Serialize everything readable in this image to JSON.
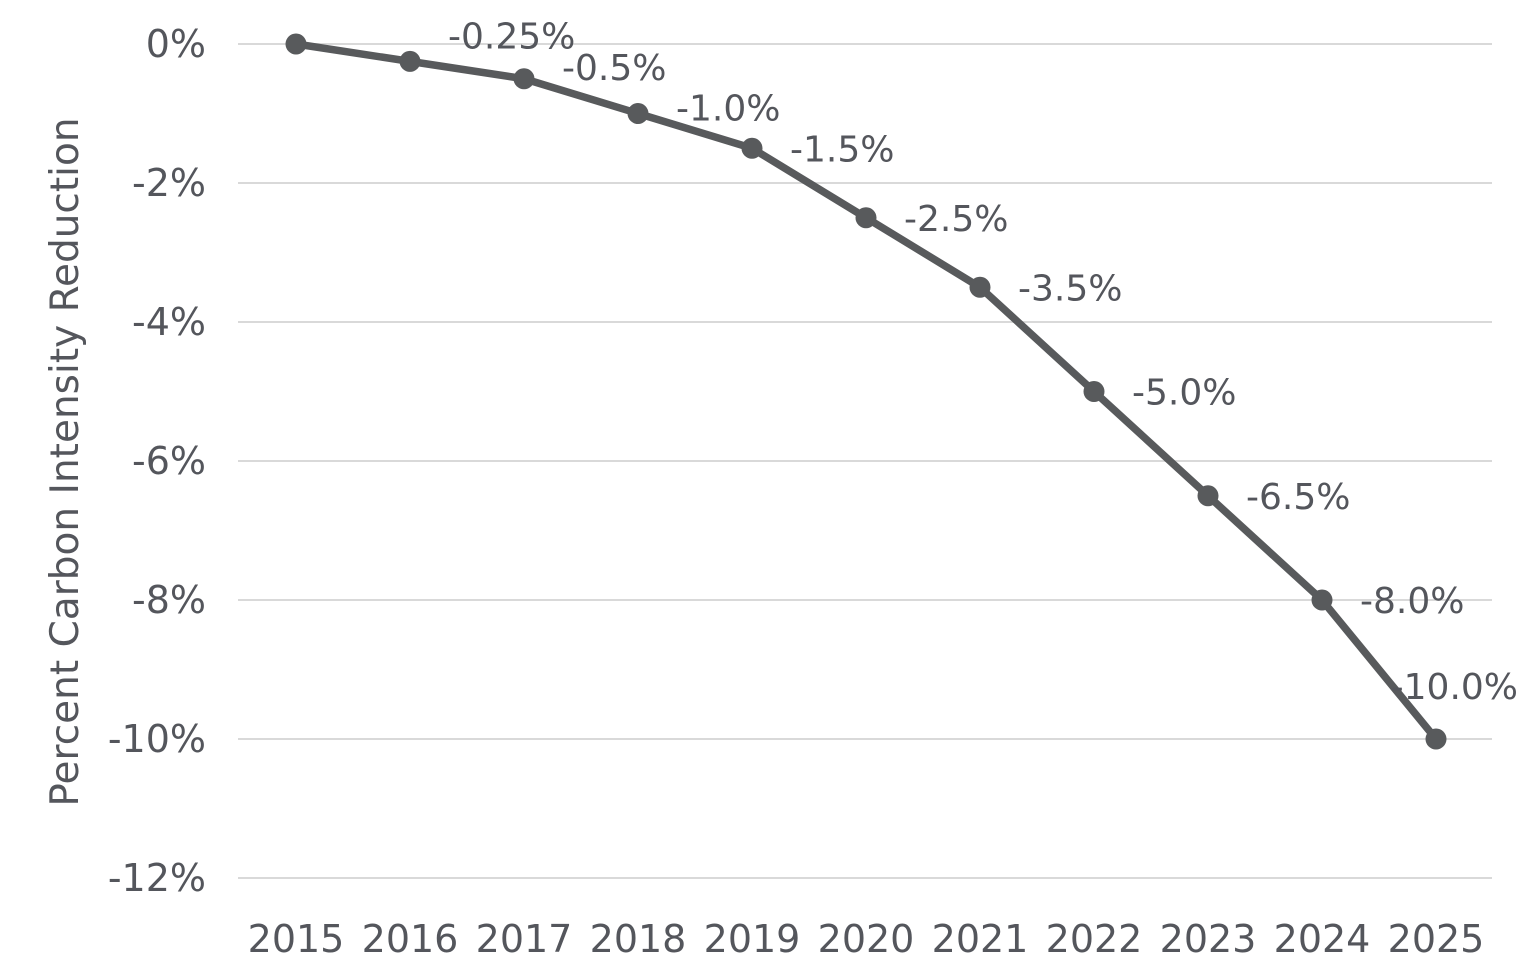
{
  "chart_data": {
    "type": "line",
    "title": "",
    "xlabel": "",
    "ylabel": "Percent Carbon Intensity Reduction",
    "categories": [
      "2015",
      "2016",
      "2017",
      "2018",
      "2019",
      "2020",
      "2021",
      "2022",
      "2023",
      "2024",
      "2025"
    ],
    "series": [
      {
        "name": "Percent Carbon Intensity Reduction",
        "values": [
          0,
          -0.25,
          -0.5,
          -1.0,
          -1.5,
          -2.5,
          -3.5,
          -5.0,
          -6.5,
          -8.0,
          -10.0
        ]
      }
    ],
    "point_labels": [
      "",
      "-0.25%",
      "-0.5%",
      "-1.0%",
      "-1.5%",
      "-2.5%",
      "-3.5%",
      "-5.0%",
      "-6.5%",
      "-8.0%",
      "-10.0%"
    ],
    "y_axis": {
      "tick_labels": [
        "0%",
        "-2%",
        "-4%",
        "-6%",
        "-8%",
        "-10%",
        "-12%"
      ],
      "tick_values": [
        0,
        -2,
        -4,
        -6,
        -8,
        -10,
        -12
      ]
    },
    "ylim": [
      -12,
      0
    ],
    "grid": "horizontal",
    "legend": false,
    "colors": {
      "series": "#585a5c",
      "marker": "#585a5c",
      "text": "#54565c",
      "gridline": "#d9d9d9",
      "background": "#ffffff"
    }
  }
}
